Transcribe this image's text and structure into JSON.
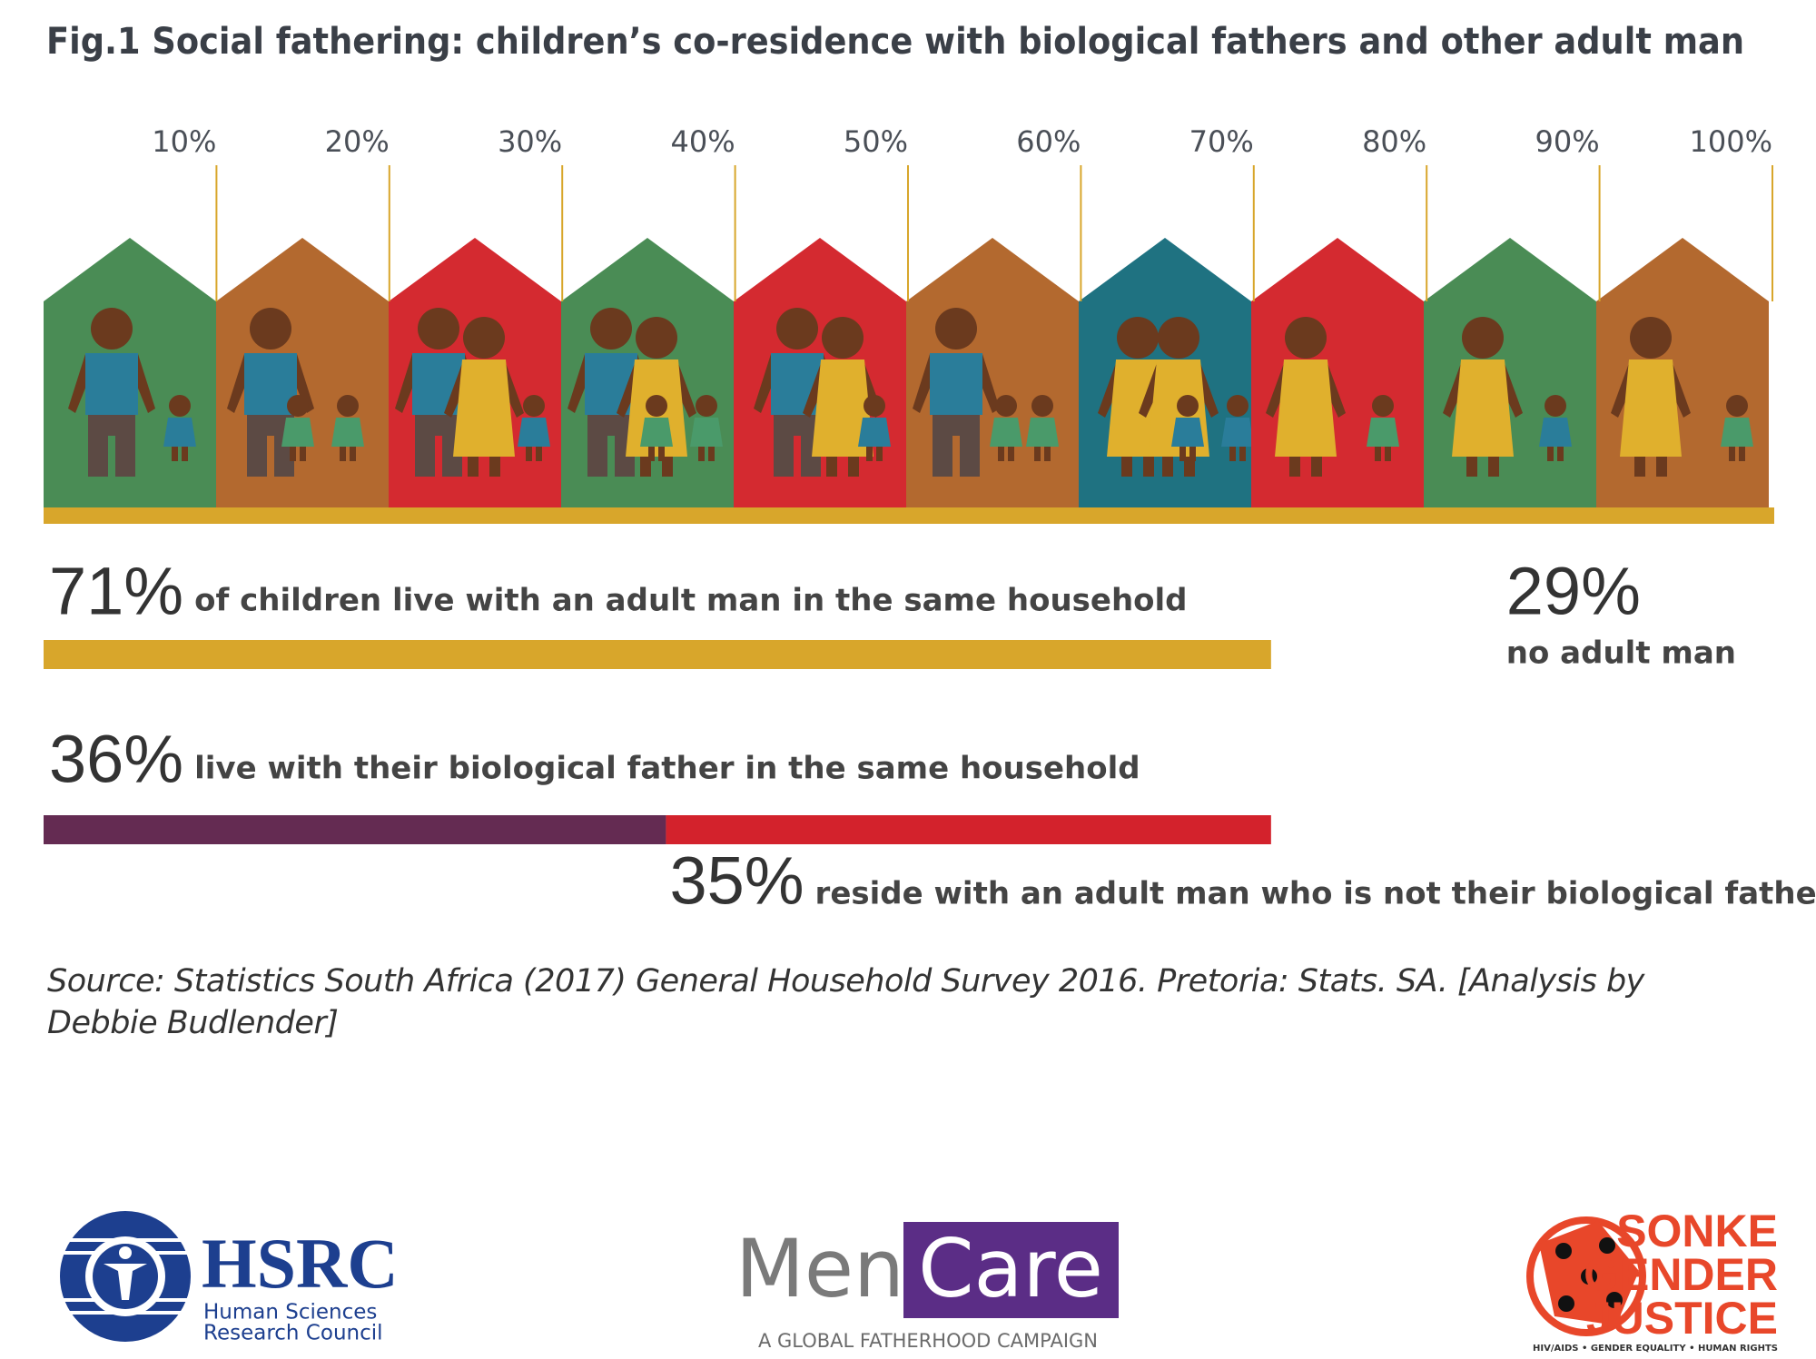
{
  "chart_data": {
    "type": "bar",
    "title": "Fig.1 Social fathering: children’s co-residence with biological fathers and other adult man",
    "xlim": [
      0,
      100
    ],
    "xticks": [
      {
        "value": 10,
        "label": "10%"
      },
      {
        "value": 20,
        "label": "20%"
      },
      {
        "value": 30,
        "label": "30%"
      },
      {
        "value": 40,
        "label": "40%"
      },
      {
        "value": 50,
        "label": "50%"
      },
      {
        "value": 60,
        "label": "60%"
      },
      {
        "value": 70,
        "label": "70%"
      },
      {
        "value": 80,
        "label": "80%"
      },
      {
        "value": 90,
        "label": "90%"
      },
      {
        "value": 100,
        "label": "100%"
      }
    ],
    "rows": [
      {
        "segments": [
          {
            "name": "of children live with an adult man in the same household",
            "value": 71,
            "value_label": "71%",
            "color": "#d8a62b"
          },
          {
            "name": "no adult man",
            "value": 29,
            "value_label": "29%"
          }
        ]
      },
      {
        "segments": [
          {
            "name": "live with their biological father in the same household",
            "value": 36,
            "value_label": "36%",
            "color": "#642b52"
          },
          {
            "name": "reside with an adult man who is not their biological father",
            "value": 35,
            "value_label": "35%",
            "color": "#d3222c"
          }
        ]
      }
    ],
    "source": "Source: Statistics South Africa (2017) General Household Survey 2016. Pretoria: Stats. SA. [Analysis by Debbie Budlender]"
  },
  "logos": {
    "hsrc": {
      "name": "HSRC",
      "line1": "Human Sciences",
      "line2": "Research Council"
    },
    "mencare": {
      "men": "Men",
      "care": "Care",
      "tagline": "A GLOBAL FATHERHOOD CAMPAIGN"
    },
    "sonke": {
      "line1": "SONKE",
      "line2": "GENDER",
      "line3": "JUSTICE",
      "tagline": "HIV/AIDS • GENDER EQUALITY • HUMAN RIGHTS"
    }
  }
}
